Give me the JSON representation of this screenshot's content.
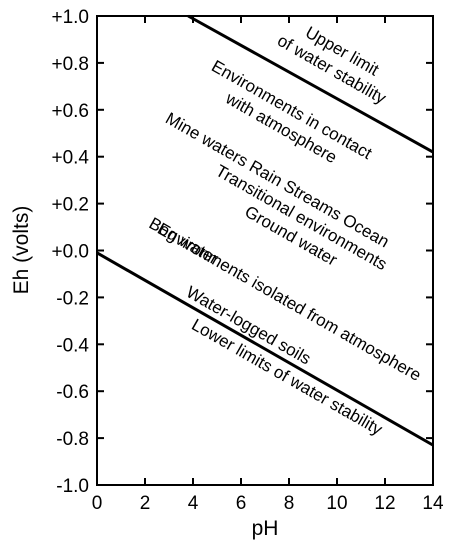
{
  "chart_data": {
    "type": "line",
    "xlabel": "pH",
    "ylabel": "Eh (volts)",
    "xlim": [
      0,
      14
    ],
    "ylim": [
      -1.0,
      1.0
    ],
    "x_ticks": [
      0,
      2,
      4,
      6,
      8,
      10,
      12,
      14
    ],
    "x_tick_labels": [
      "0",
      "2",
      "4",
      "6",
      "8",
      "10",
      "12",
      "14"
    ],
    "y_ticks": [
      1.0,
      0.8,
      0.6,
      0.4,
      0.2,
      0.0,
      -0.2,
      -0.4,
      -0.6,
      -0.8,
      -1.0
    ],
    "y_tick_labels": [
      "+1.0",
      "+0.8",
      "+0.6",
      "+0.4",
      "+0.2",
      "+0.0",
      "-0.2",
      "-0.4",
      "-0.6",
      "-0.8",
      "-1.0"
    ],
    "series": [
      {
        "name": "",
        "x": [
          3.8,
          14
        ],
        "y": [
          1.0,
          0.42
        ]
      },
      {
        "name": "",
        "x": [
          0,
          14
        ],
        "y": [
          -0.01,
          -0.83
        ]
      }
    ],
    "annotations": [
      {
        "lines": [
          "Upper limit",
          "of water stability"
        ],
        "x": 10.1,
        "y": 0.83
      },
      {
        "lines": [
          "Environments in contact",
          "with atmosphere"
        ],
        "x": 8.0,
        "y": 0.58
      },
      {
        "lines": [
          "Mine waters   Rain   Streams  Ocean"
        ],
        "x": 7.4,
        "y": 0.28
      },
      {
        "lines": [
          "Transitional environments",
          "Ground water"
        ],
        "x": 8.4,
        "y": 0.12
      },
      {
        "lines": [
          "Bog water"
        ],
        "x": 3.5,
        "y": 0.02
      },
      {
        "lines": [
          "Environments isolated from atmosphere"
        ],
        "x": 7.9,
        "y": -0.24
      },
      {
        "lines": [
          "Water-logged soils"
        ],
        "x": 6.2,
        "y": -0.34
      },
      {
        "lines": [
          "Lower limits of water stability"
        ],
        "x": 7.8,
        "y": -0.56
      }
    ]
  }
}
